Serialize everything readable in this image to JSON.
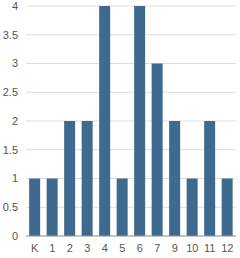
{
  "chart_data": {
    "type": "bar",
    "categories": [
      "K",
      "1",
      "2",
      "3",
      "4",
      "5",
      "6",
      "7",
      "9",
      "10",
      "11",
      "12"
    ],
    "values": [
      1,
      1,
      2,
      2,
      4,
      1,
      4,
      3,
      2,
      1,
      2,
      1
    ],
    "color": "#3d6a8e",
    "ylim": [
      0,
      4
    ],
    "yticks": [
      0,
      0.5,
      1,
      1.5,
      2,
      2.5,
      3,
      3.5,
      4
    ],
    "grid": true
  }
}
